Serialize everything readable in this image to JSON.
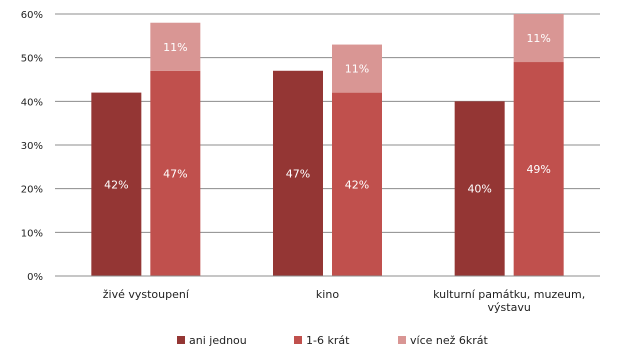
{
  "chart_data": {
    "type": "bar",
    "stacked_groups": true,
    "categories": [
      [
        "živé vystoupení"
      ],
      [
        "kino"
      ],
      [
        "kulturní památku, muzeum,",
        "výstavu"
      ]
    ],
    "series": [
      {
        "name": "ani jednou",
        "values": [
          42,
          47,
          40
        ],
        "labels": [
          "42%",
          "47%",
          "40%"
        ],
        "group": "left",
        "color": "#943634"
      },
      {
        "name": "1-6 krát",
        "values": [
          47,
          42,
          49
        ],
        "labels": [
          "47%",
          "42%",
          "49%"
        ],
        "group": "right",
        "color": "#c0504d"
      },
      {
        "name": "více než 6krát",
        "values": [
          11,
          11,
          11
        ],
        "labels": [
          "11%",
          "11%",
          "11%"
        ],
        "group": "right",
        "color": "#d99694"
      }
    ],
    "y_ticks": [
      "0%",
      "10%",
      "20%",
      "30%",
      "40%",
      "50%",
      "60%"
    ],
    "ylim": [
      0,
      60
    ],
    "grid": true,
    "legend_position": "bottom",
    "xlabel": "",
    "ylabel": "",
    "title": ""
  }
}
